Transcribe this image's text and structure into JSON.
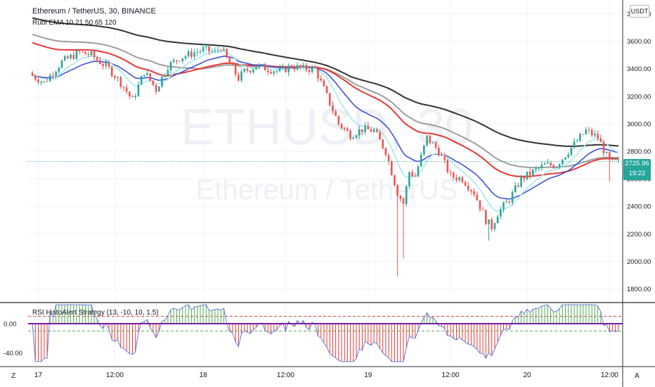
{
  "header": {
    "title": "Ethereum / TetherUS, 30, BINANCE",
    "ema_legend": "Rubi EMA 10 21 50 65 120",
    "rsi_legend": "RSI HistoAlert Strategy (13, -10, 10, 1.5)",
    "currency_button": "USDT"
  },
  "watermark": {
    "symbol": "ETHUSD, 30",
    "name": "Ethereum / TetherUS"
  },
  "last_price": {
    "value": "2725.96",
    "countdown": "19:22"
  },
  "corner_buttons": {
    "left": "Z",
    "right": "A"
  },
  "colors": {
    "up": "#26a69a",
    "down": "#ef5350",
    "ema10": "#a5e8f0",
    "ema21": "#3f51d6",
    "ema50": "#e53935",
    "ema65": "#9e9e9e",
    "ema120": "#333333",
    "rsi_pos": "#4caf50",
    "rsi_neg": "#e53935",
    "rsi_zero": "#7b1fa2",
    "last_price_bg": "#26a69a"
  },
  "chart_data": [
    {
      "type": "candlestick",
      "title": "Ethereum / TetherUS, 30, BINANCE",
      "ylim": [
        1700,
        3900
      ],
      "y_ticks": [
        "3800.00",
        "3600.00",
        "3400.00",
        "3200.00",
        "3000.00",
        "2800.00",
        "2600.00",
        "2400.00",
        "2200.00",
        "2000.00",
        "1800.00"
      ],
      "x_ticks": [
        "17",
        "12:00",
        "18",
        "12:00",
        "19",
        "12:00",
        "20",
        "12:00"
      ],
      "grid": true,
      "price_anchors": [
        [
          0,
          3350
        ],
        [
          4,
          3300
        ],
        [
          10,
          3450
        ],
        [
          16,
          3520
        ],
        [
          20,
          3500
        ],
        [
          26,
          3400
        ],
        [
          30,
          3300
        ],
        [
          34,
          3170
        ],
        [
          38,
          3380
        ],
        [
          42,
          3250
        ],
        [
          46,
          3420
        ],
        [
          50,
          3480
        ],
        [
          54,
          3510
        ],
        [
          58,
          3540
        ],
        [
          62,
          3520
        ],
        [
          64,
          3560
        ],
        [
          66,
          3470
        ],
        [
          70,
          3330
        ],
        [
          72,
          3380
        ],
        [
          76,
          3420
        ],
        [
          80,
          3400
        ],
        [
          84,
          3380
        ],
        [
          88,
          3420
        ],
        [
          92,
          3400
        ],
        [
          96,
          3400
        ],
        [
          98,
          3300
        ],
        [
          102,
          3100
        ],
        [
          104,
          3000
        ],
        [
          108,
          2920
        ],
        [
          112,
          2960
        ],
        [
          116,
          2950
        ],
        [
          120,
          2800
        ],
        [
          124,
          2500
        ],
        [
          126,
          2420
        ],
        [
          128,
          2650
        ],
        [
          130,
          2620
        ],
        [
          134,
          2900
        ],
        [
          138,
          2800
        ],
        [
          142,
          2620
        ],
        [
          146,
          2600
        ],
        [
          150,
          2500
        ],
        [
          154,
          2300
        ],
        [
          156,
          2250
        ],
        [
          158,
          2350
        ],
        [
          162,
          2450
        ],
        [
          166,
          2600
        ],
        [
          170,
          2650
        ],
        [
          174,
          2700
        ],
        [
          178,
          2700
        ],
        [
          182,
          2800
        ],
        [
          186,
          2900
        ],
        [
          188,
          2950
        ],
        [
          192,
          2900
        ],
        [
          196,
          2720
        ]
      ],
      "ema_periods": [
        10,
        21,
        50,
        65,
        120
      ],
      "wick_spikes": [
        {
          "x": 124,
          "low": 1890
        },
        {
          "x": 126,
          "low": 2020
        },
        {
          "x": 155,
          "low": 2150
        },
        {
          "x": 196,
          "low": 2580
        }
      ],
      "last_price": 2725.96
    },
    {
      "type": "histogram",
      "title": "RSI HistoAlert Strategy (13, -10, 10, 1.5)",
      "ylim": [
        -55,
        28
      ],
      "y_ticks": [
        "0.00",
        "-40.00"
      ],
      "upper_band": 10,
      "lower_band": -10,
      "rsi_length": 13
    }
  ]
}
